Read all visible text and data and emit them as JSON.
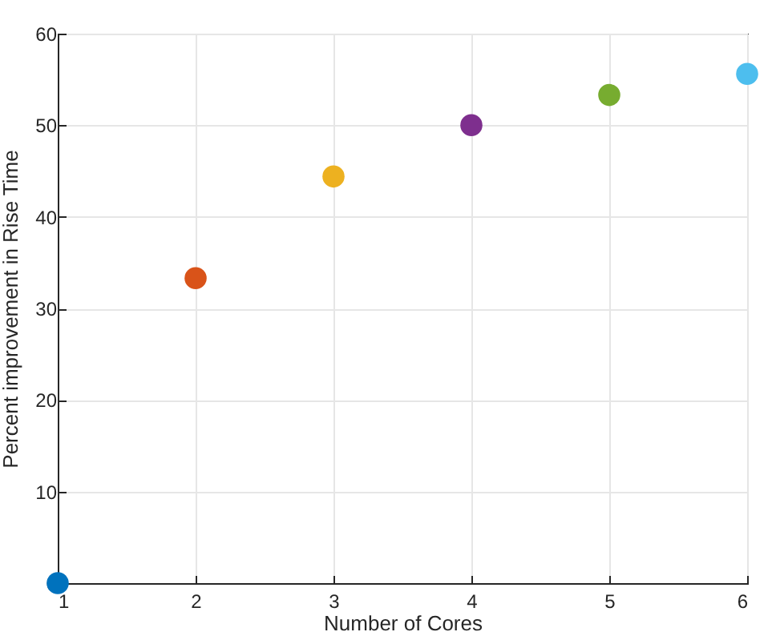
{
  "chart_data": {
    "type": "scatter",
    "xlabel": "Number of Cores",
    "ylabel": "Percent improvement in Rise Time",
    "x": [
      1,
      2,
      3,
      4,
      5,
      6
    ],
    "values": [
      0,
      33.3,
      44.4,
      50,
      53.3,
      55.6
    ],
    "colors": [
      "#0072bd",
      "#d95319",
      "#edb120",
      "#7e2f8e",
      "#77ac30",
      "#4dbeee"
    ],
    "xlim": [
      1,
      6
    ],
    "xticks": [
      1,
      2,
      3,
      4,
      5,
      6
    ],
    "ylim": [
      0,
      60
    ],
    "yticks": [
      0,
      10,
      20,
      30,
      40,
      50,
      60
    ],
    "grid": true,
    "marker": "circle"
  }
}
